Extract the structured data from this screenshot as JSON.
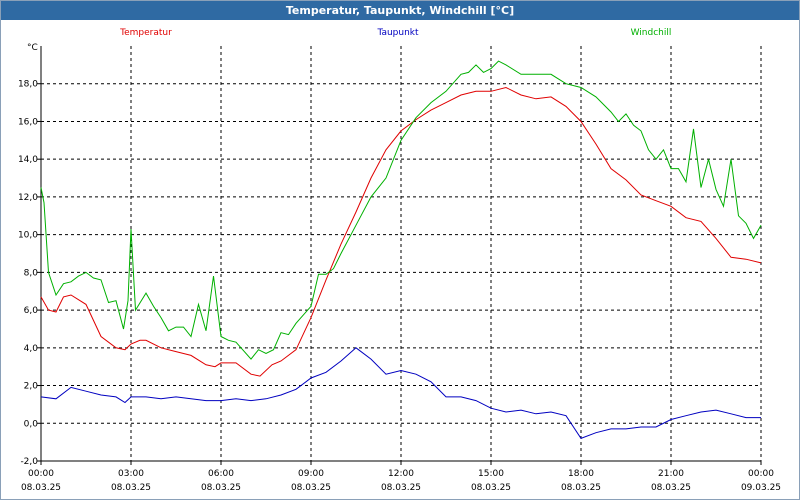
{
  "window": {
    "title": "Temperatur, Taupunkt, Windchill [°C]"
  },
  "chart_data": {
    "type": "line",
    "title": "Temperatur, Taupunkt, Windchill [°C]",
    "ylabel": "°C",
    "ylim": [
      -2,
      20
    ],
    "yticks": [
      "-2,0",
      "0,0",
      "2,0",
      "4,0",
      "6,0",
      "8,0",
      "10,0",
      "12,0",
      "14,0",
      "16,0",
      "18,0"
    ],
    "xticks": [
      {
        "time": "00:00",
        "date": "08.03.25"
      },
      {
        "time": "03:00",
        "date": "08.03.25"
      },
      {
        "time": "06:00",
        "date": "08.03.25"
      },
      {
        "time": "09:00",
        "date": "08.03.25"
      },
      {
        "time": "12:00",
        "date": "08.03.25"
      },
      {
        "time": "15:00",
        "date": "08.03.25"
      },
      {
        "time": "18:00",
        "date": "08.03.25"
      },
      {
        "time": "21:00",
        "date": "08.03.25"
      },
      {
        "time": "00:00",
        "date": "09.03.25"
      }
    ],
    "grid": true,
    "legend": "top",
    "x_unit": "hours since 08.03.25 00:00",
    "series": [
      {
        "name": "Temperatur",
        "color": "#e00000",
        "x": [
          0,
          0.25,
          0.5,
          0.75,
          1,
          1.5,
          2,
          2.5,
          2.8,
          3,
          3.3,
          3.5,
          4,
          4.5,
          5,
          5.5,
          5.8,
          6,
          6.5,
          7,
          7.3,
          7.7,
          8,
          8.5,
          9,
          9.5,
          10,
          10.5,
          11,
          11.5,
          12,
          12.5,
          13,
          13.5,
          14,
          14.5,
          15,
          15.5,
          16,
          16.5,
          17,
          17.5,
          18,
          18.5,
          19,
          19.5,
          20,
          20.5,
          21,
          21.5,
          22,
          22.5,
          23,
          23.5,
          24
        ],
        "values": [
          6.7,
          6.0,
          5.9,
          6.7,
          6.8,
          6.3,
          4.6,
          4.0,
          3.9,
          4.2,
          4.4,
          4.4,
          4.0,
          3.8,
          3.6,
          3.1,
          3.0,
          3.2,
          3.2,
          2.6,
          2.5,
          3.1,
          3.3,
          3.9,
          5.6,
          7.6,
          9.5,
          11.2,
          13.0,
          14.5,
          15.5,
          16.1,
          16.6,
          17.0,
          17.4,
          17.6,
          17.6,
          17.8,
          17.4,
          17.2,
          17.3,
          16.8,
          16.0,
          14.8,
          13.5,
          12.9,
          12.1,
          11.8,
          11.5,
          10.9,
          10.7,
          9.8,
          8.8,
          8.7,
          8.5
        ]
      },
      {
        "name": "Taupunkt",
        "color": "#0000c0",
        "x": [
          0,
          0.5,
          1,
          1.5,
          2,
          2.5,
          2.8,
          3,
          3.5,
          4,
          4.5,
          5,
          5.5,
          6,
          6.5,
          7,
          7.5,
          8,
          8.5,
          9,
          9.5,
          10,
          10.5,
          11,
          11.5,
          12,
          12.5,
          13,
          13.5,
          14,
          14.5,
          15,
          15.5,
          16,
          16.5,
          17,
          17.5,
          18,
          18.5,
          19,
          19.5,
          20,
          20.5,
          21,
          21.5,
          22,
          22.5,
          23,
          23.5,
          24
        ],
        "values": [
          1.4,
          1.3,
          1.9,
          1.7,
          1.5,
          1.4,
          1.1,
          1.4,
          1.4,
          1.3,
          1.4,
          1.3,
          1.2,
          1.2,
          1.3,
          1.2,
          1.3,
          1.5,
          1.8,
          2.4,
          2.7,
          3.3,
          4.0,
          3.4,
          2.6,
          2.8,
          2.6,
          2.2,
          1.4,
          1.4,
          1.2,
          0.8,
          0.6,
          0.7,
          0.5,
          0.6,
          0.4,
          -0.8,
          -0.5,
          -0.3,
          -0.3,
          -0.2,
          -0.2,
          0.2,
          0.4,
          0.6,
          0.7,
          0.5,
          0.3,
          0.3
        ]
      },
      {
        "name": "Windchill",
        "color": "#00b000",
        "x": [
          0,
          0.1,
          0.25,
          0.5,
          0.75,
          1,
          1.25,
          1.5,
          1.75,
          2,
          2.25,
          2.5,
          2.75,
          2.9,
          3,
          3.15,
          3.5,
          3.75,
          4,
          4.25,
          4.5,
          4.75,
          5,
          5.25,
          5.5,
          5.75,
          6,
          6.25,
          6.5,
          7,
          7.25,
          7.5,
          7.75,
          8,
          8.25,
          8.5,
          9,
          9.25,
          9.5,
          9.75,
          10,
          10.5,
          11,
          11.5,
          12,
          12.5,
          13,
          13.5,
          14,
          14.25,
          14.5,
          14.75,
          15,
          15.25,
          15.5,
          16,
          16.5,
          17,
          17.5,
          18,
          18.5,
          19,
          19.25,
          19.5,
          19.75,
          20,
          20.25,
          20.5,
          20.75,
          21,
          21.25,
          21.5,
          21.75,
          22,
          22.25,
          22.5,
          22.75,
          23,
          23.25,
          23.5,
          23.75,
          24
        ],
        "values": [
          12.5,
          11.7,
          8.0,
          6.8,
          7.4,
          7.5,
          7.8,
          8.0,
          7.7,
          7.6,
          6.4,
          6.5,
          5.0,
          6.5,
          10.3,
          6.0,
          6.9,
          6.2,
          5.6,
          4.9,
          5.1,
          5.1,
          4.6,
          6.3,
          4.9,
          7.8,
          4.6,
          4.4,
          4.3,
          3.4,
          3.9,
          3.7,
          3.9,
          4.8,
          4.7,
          5.3,
          6.2,
          7.9,
          7.9,
          8.2,
          9.0,
          10.5,
          12.0,
          13.0,
          15.0,
          16.2,
          17.0,
          17.6,
          18.5,
          18.6,
          19.0,
          18.6,
          18.8,
          19.2,
          19.0,
          18.5,
          18.5,
          18.5,
          18.0,
          17.8,
          17.3,
          16.5,
          16.0,
          16.4,
          15.8,
          15.5,
          14.5,
          14.0,
          14.5,
          13.5,
          13.5,
          12.8,
          15.6,
          12.5,
          14.0,
          12.4,
          11.5,
          14.0,
          11.0,
          10.6,
          9.8,
          10.5
        ]
      }
    ]
  }
}
